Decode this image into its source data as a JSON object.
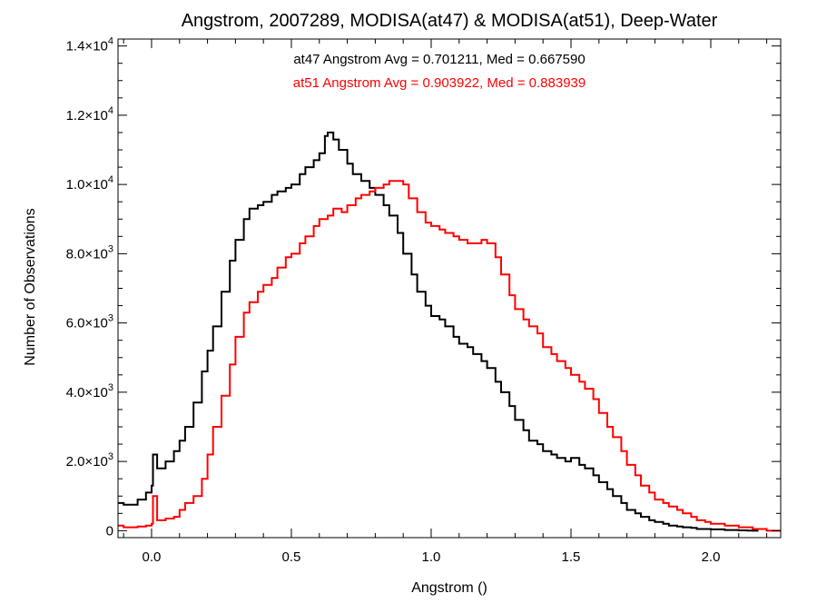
{
  "chart_data": {
    "type": "histogram",
    "title": "Angstrom, 2007289, MODISA(at47) & MODISA(at51), Deep-Water",
    "xlabel": "Angstrom ()",
    "ylabel": "Number of Observations",
    "xlim": [
      -0.12,
      2.25
    ],
    "ylim": [
      -200,
      14200
    ],
    "grid": false,
    "x_ticks": [
      {
        "value": 0.0,
        "label": "0.0"
      },
      {
        "value": 0.5,
        "label": "0.5"
      },
      {
        "value": 1.0,
        "label": "1.0"
      },
      {
        "value": 1.5,
        "label": "1.5"
      },
      {
        "value": 2.0,
        "label": "2.0"
      }
    ],
    "y_ticks": [
      {
        "value": 0,
        "mantissa": "0",
        "exponent": ""
      },
      {
        "value": 2000,
        "mantissa": "2.0×10",
        "exponent": "3"
      },
      {
        "value": 4000,
        "mantissa": "4.0×10",
        "exponent": "3"
      },
      {
        "value": 6000,
        "mantissa": "6.0×10",
        "exponent": "3"
      },
      {
        "value": 8000,
        "mantissa": "8.0×10",
        "exponent": "3"
      },
      {
        "value": 10000,
        "mantissa": "1.0×10",
        "exponent": "4"
      },
      {
        "value": 12000,
        "mantissa": "1.2×10",
        "exponent": "4"
      },
      {
        "value": 14000,
        "mantissa": "1.4×10",
        "exponent": "4"
      }
    ],
    "annotations": [
      {
        "text": "at47 Angstrom Avg = 0.701211, Med = 0.667590",
        "color": "#000000"
      },
      {
        "text": "at51 Angstrom Avg = 0.903922, Med = 0.883939",
        "color": "#ff0000"
      }
    ],
    "series": [
      {
        "color": "#000000",
        "x": [
          -0.12,
          -0.1,
          -0.05,
          -0.02,
          0.0,
          0.005,
          0.02,
          0.05,
          0.08,
          0.1,
          0.12,
          0.15,
          0.18,
          0.2,
          0.22,
          0.25,
          0.28,
          0.3,
          0.33,
          0.35,
          0.38,
          0.4,
          0.43,
          0.45,
          0.48,
          0.5,
          0.53,
          0.55,
          0.58,
          0.6,
          0.62,
          0.63,
          0.65,
          0.67,
          0.7,
          0.72,
          0.75,
          0.78,
          0.8,
          0.83,
          0.85,
          0.88,
          0.9,
          0.93,
          0.95,
          0.98,
          1.0,
          1.03,
          1.05,
          1.08,
          1.1,
          1.13,
          1.15,
          1.18,
          1.2,
          1.23,
          1.25,
          1.28,
          1.3,
          1.33,
          1.35,
          1.38,
          1.4,
          1.43,
          1.45,
          1.48,
          1.5,
          1.53,
          1.55,
          1.58,
          1.6,
          1.63,
          1.65,
          1.68,
          1.7,
          1.73,
          1.75,
          1.78,
          1.8,
          1.83,
          1.85,
          1.88,
          1.9,
          1.93,
          1.95,
          2.0,
          2.05,
          2.1,
          2.13,
          2.15
        ],
        "values": [
          800,
          750,
          900,
          1100,
          1300,
          2200,
          1800,
          2000,
          2300,
          2600,
          3000,
          3700,
          4600,
          5200,
          5900,
          6900,
          7800,
          8400,
          9000,
          9300,
          9400,
          9500,
          9700,
          9800,
          9900,
          10000,
          10300,
          10500,
          10700,
          10900,
          11400,
          11500,
          11300,
          11000,
          10600,
          10300,
          10100,
          9900,
          9700,
          9400,
          9100,
          8600,
          8000,
          7400,
          6900,
          6500,
          6200,
          6100,
          5900,
          5600,
          5400,
          5300,
          5100,
          4900,
          4700,
          4300,
          4000,
          3600,
          3200,
          2900,
          2600,
          2500,
          2300,
          2200,
          2100,
          2000,
          2100,
          1900,
          1800,
          1600,
          1400,
          1200,
          1000,
          800,
          600,
          500,
          400,
          300,
          250,
          200,
          150,
          120,
          100,
          80,
          50,
          40,
          20,
          10,
          5,
          0
        ]
      },
      {
        "color": "#ff0000",
        "x": [
          -0.12,
          -0.1,
          -0.05,
          -0.02,
          0.0,
          0.005,
          0.02,
          0.05,
          0.08,
          0.1,
          0.12,
          0.15,
          0.18,
          0.2,
          0.22,
          0.25,
          0.28,
          0.3,
          0.33,
          0.35,
          0.38,
          0.4,
          0.43,
          0.45,
          0.48,
          0.5,
          0.53,
          0.55,
          0.58,
          0.6,
          0.63,
          0.65,
          0.68,
          0.7,
          0.73,
          0.75,
          0.78,
          0.8,
          0.83,
          0.85,
          0.88,
          0.9,
          0.92,
          0.95,
          0.98,
          1.0,
          1.03,
          1.05,
          1.08,
          1.1,
          1.13,
          1.15,
          1.18,
          1.2,
          1.23,
          1.25,
          1.28,
          1.3,
          1.33,
          1.35,
          1.38,
          1.4,
          1.43,
          1.45,
          1.48,
          1.5,
          1.53,
          1.55,
          1.58,
          1.6,
          1.63,
          1.65,
          1.68,
          1.7,
          1.73,
          1.75,
          1.78,
          1.8,
          1.83,
          1.85,
          1.88,
          1.9,
          1.93,
          1.95,
          1.98,
          2.0,
          2.05,
          2.1,
          2.15,
          2.2
        ],
        "values": [
          150,
          100,
          120,
          150,
          200,
          1000,
          300,
          350,
          400,
          600,
          800,
          1000,
          1500,
          2200,
          3000,
          3900,
          4800,
          5600,
          6300,
          6600,
          6900,
          7100,
          7300,
          7600,
          7900,
          8000,
          8300,
          8500,
          8800,
          9000,
          9100,
          9300,
          9200,
          9400,
          9600,
          9700,
          9800,
          9900,
          10000,
          10100,
          10100,
          10000,
          9600,
          9200,
          8900,
          8800,
          8700,
          8600,
          8500,
          8400,
          8300,
          8300,
          8400,
          8300,
          7900,
          7400,
          6800,
          6400,
          6100,
          5900,
          5700,
          5300,
          5100,
          4900,
          4700,
          4500,
          4300,
          4100,
          3800,
          3400,
          3000,
          2700,
          2300,
          1900,
          1600,
          1300,
          1100,
          900,
          800,
          700,
          600,
          500,
          400,
          300,
          250,
          200,
          150,
          100,
          50,
          0
        ]
      }
    ]
  }
}
